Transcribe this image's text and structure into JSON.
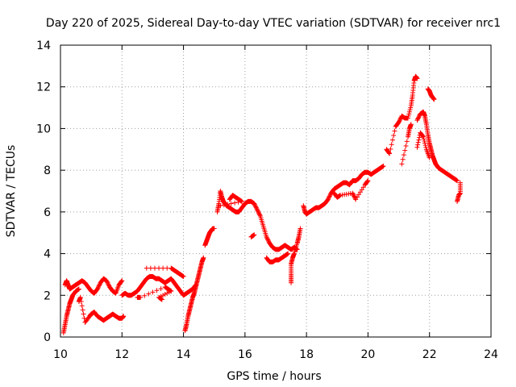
{
  "chart_data": {
    "type": "scatter",
    "title": "Day 220 of 2025, Sidereal Day-to-day VTEC variation (SDTVAR) for receiver nrc1",
    "xlabel": "GPS time / hours",
    "ylabel": "SDTVAR / TECUs",
    "xlim": [
      10,
      24
    ],
    "ylim": [
      0,
      14
    ],
    "xticks": [
      10,
      12,
      14,
      16,
      18,
      20,
      22,
      24
    ],
    "yticks": [
      0,
      2,
      4,
      6,
      8,
      10,
      12,
      14
    ],
    "grid": true,
    "marker": "+",
    "series": [
      {
        "name": "SDTVAR",
        "color": "#ff0000",
        "segments": [
          [
            [
              10.1,
              0.2
            ],
            [
              10.15,
              0.6
            ],
            [
              10.2,
              1.0
            ],
            [
              10.25,
              1.3
            ],
            [
              10.3,
              1.6
            ],
            [
              10.35,
              1.8
            ],
            [
              10.4,
              2.0
            ],
            [
              10.5,
              2.2
            ],
            [
              10.6,
              2.3
            ]
          ],
          [
            [
              10.15,
              2.5
            ],
            [
              10.2,
              2.7
            ],
            [
              10.25,
              2.5
            ],
            [
              10.3,
              2.3
            ],
            [
              10.4,
              2.4
            ],
            [
              10.5,
              2.5
            ],
            [
              10.6,
              2.6
            ],
            [
              10.7,
              2.7
            ],
            [
              10.8,
              2.6
            ],
            [
              10.9,
              2.4
            ],
            [
              11.0,
              2.2
            ],
            [
              11.1,
              2.1
            ],
            [
              11.2,
              2.3
            ],
            [
              11.3,
              2.6
            ],
            [
              11.4,
              2.8
            ],
            [
              11.5,
              2.7
            ],
            [
              11.6,
              2.4
            ],
            [
              11.7,
              2.2
            ],
            [
              11.8,
              2.1
            ],
            [
              11.9,
              2.5
            ],
            [
              12.0,
              2.7
            ]
          ],
          [
            [
              10.6,
              1.7
            ],
            [
              10.65,
              1.9
            ],
            [
              10.8,
              0.7
            ],
            [
              10.95,
              1.0
            ],
            [
              11.0,
              1.1
            ],
            [
              11.1,
              1.2
            ],
            [
              11.2,
              1.0
            ],
            [
              11.3,
              0.9
            ],
            [
              11.4,
              0.8
            ],
            [
              11.5,
              0.9
            ],
            [
              11.6,
              1.0
            ],
            [
              11.7,
              1.1
            ],
            [
              11.8,
              1.0
            ],
            [
              11.9,
              0.9
            ],
            [
              12.0,
              0.9
            ],
            [
              12.05,
              1.0
            ]
          ],
          [
            [
              12.0,
              2.0
            ],
            [
              12.1,
              2.1
            ],
            [
              12.2,
              2.0
            ],
            [
              12.3,
              2.0
            ],
            [
              12.4,
              2.1
            ],
            [
              12.5,
              2.2
            ],
            [
              12.6,
              2.4
            ],
            [
              12.7,
              2.6
            ],
            [
              12.8,
              2.8
            ],
            [
              12.9,
              2.9
            ],
            [
              13.0,
              2.9
            ],
            [
              13.1,
              2.8
            ],
            [
              13.2,
              2.8
            ],
            [
              13.3,
              2.7
            ],
            [
              13.4,
              2.6
            ],
            [
              13.5,
              2.7
            ],
            [
              13.6,
              2.8
            ],
            [
              13.7,
              2.6
            ],
            [
              13.8,
              2.4
            ],
            [
              13.9,
              2.2
            ],
            [
              14.0,
              2.0
            ],
            [
              14.1,
              2.1
            ],
            [
              14.2,
              2.2
            ],
            [
              14.3,
              2.3
            ],
            [
              14.4,
              2.5
            ]
          ],
          [
            [
              12.5,
              1.9
            ],
            [
              12.6,
              1.9
            ],
            [
              13.4,
              2.4
            ],
            [
              13.5,
              2.3
            ],
            [
              13.6,
              2.2
            ],
            [
              13.2,
              1.9
            ],
            [
              13.3,
              1.8
            ]
          ],
          [
            [
              12.8,
              3.3
            ],
            [
              13.6,
              3.3
            ],
            [
              13.7,
              3.2
            ],
            [
              13.8,
              3.1
            ],
            [
              13.9,
              3.0
            ],
            [
              14.0,
              2.9
            ]
          ],
          [
            [
              14.05,
              0.3
            ],
            [
              14.1,
              0.6
            ],
            [
              14.15,
              1.0
            ],
            [
              14.2,
              1.3
            ],
            [
              14.25,
              1.6
            ],
            [
              14.3,
              1.9
            ],
            [
              14.35,
              2.1
            ],
            [
              14.4,
              2.4
            ],
            [
              14.45,
              2.7
            ],
            [
              14.5,
              3.0
            ],
            [
              14.55,
              3.3
            ],
            [
              14.6,
              3.6
            ],
            [
              14.65,
              3.8
            ]
          ],
          [
            [
              14.7,
              4.4
            ],
            [
              14.75,
              4.6
            ],
            [
              14.8,
              4.8
            ],
            [
              14.85,
              5.0
            ],
            [
              14.9,
              5.1
            ],
            [
              14.95,
              5.2
            ],
            [
              15.0,
              5.2
            ]
          ],
          [
            [
              15.1,
              6.0
            ],
            [
              15.15,
              6.4
            ],
            [
              15.2,
              7.0
            ],
            [
              15.25,
              6.7
            ],
            [
              15.3,
              6.5
            ],
            [
              15.35,
              6.4
            ],
            [
              15.4,
              6.3
            ],
            [
              15.5,
              6.2
            ],
            [
              15.6,
              6.1
            ],
            [
              15.7,
              6.0
            ],
            [
              15.8,
              6.0
            ],
            [
              15.9,
              6.2
            ],
            [
              16.0,
              6.4
            ],
            [
              16.1,
              6.5
            ],
            [
              16.2,
              6.5
            ],
            [
              16.3,
              6.4
            ],
            [
              16.4,
              6.1
            ],
            [
              16.5,
              5.8
            ],
            [
              16.6,
              5.3
            ],
            [
              16.7,
              4.8
            ],
            [
              16.8,
              4.5
            ],
            [
              16.9,
              4.3
            ],
            [
              17.0,
              4.2
            ],
            [
              17.1,
              4.2
            ],
            [
              17.2,
              4.3
            ],
            [
              17.3,
              4.4
            ],
            [
              17.4,
              4.3
            ],
            [
              17.5,
              4.2
            ],
            [
              17.6,
              4.3
            ],
            [
              17.7,
              4.2
            ]
          ],
          [
            [
              15.5,
              6.6
            ],
            [
              15.6,
              6.8
            ],
            [
              15.7,
              6.7
            ],
            [
              15.8,
              6.6
            ],
            [
              15.9,
              6.5
            ],
            [
              15.2,
              6.3
            ]
          ],
          [
            [
              16.2,
              4.8
            ],
            [
              16.3,
              4.9
            ]
          ],
          [
            [
              16.7,
              3.8
            ],
            [
              16.8,
              3.6
            ],
            [
              16.9,
              3.6
            ],
            [
              17.0,
              3.7
            ],
            [
              17.1,
              3.7
            ],
            [
              17.2,
              3.8
            ],
            [
              17.3,
              3.9
            ],
            [
              17.4,
              4.0
            ]
          ],
          [
            [
              17.5,
              2.6
            ],
            [
              17.5,
              3.0
            ],
            [
              17.5,
              3.5
            ],
            [
              17.55,
              3.8
            ],
            [
              17.6,
              4.0
            ],
            [
              17.7,
              4.5
            ],
            [
              17.75,
              4.8
            ],
            [
              17.8,
              5.2
            ]
          ],
          [
            [
              17.9,
              6.3
            ],
            [
              17.95,
              6.0
            ],
            [
              18.0,
              5.9
            ],
            [
              18.1,
              6.0
            ],
            [
              18.2,
              6.1
            ],
            [
              18.3,
              6.2
            ],
            [
              18.4,
              6.2
            ],
            [
              18.5,
              6.3
            ],
            [
              18.6,
              6.4
            ],
            [
              18.7,
              6.6
            ],
            [
              18.8,
              6.9
            ],
            [
              18.9,
              7.1
            ],
            [
              19.0,
              7.2
            ],
            [
              19.1,
              7.3
            ],
            [
              19.2,
              7.4
            ],
            [
              19.3,
              7.4
            ],
            [
              19.4,
              7.3
            ],
            [
              19.5,
              7.5
            ],
            [
              19.6,
              7.5
            ],
            [
              19.7,
              7.6
            ],
            [
              19.8,
              7.8
            ],
            [
              19.9,
              7.9
            ],
            [
              20.0,
              7.9
            ],
            [
              20.1,
              7.8
            ],
            [
              20.2,
              7.9
            ],
            [
              20.3,
              8.0
            ],
            [
              20.4,
              8.1
            ],
            [
              20.5,
              8.2
            ]
          ],
          [
            [
              18.9,
              6.9
            ],
            [
              19.0,
              6.7
            ],
            [
              19.1,
              6.8
            ],
            [
              19.5,
              6.9
            ],
            [
              19.6,
              6.6
            ],
            [
              19.9,
              7.3
            ],
            [
              20.0,
              7.5
            ]
          ],
          [
            [
              20.6,
              9.0
            ],
            [
              20.7,
              8.8
            ],
            [
              20.9,
              10.1
            ],
            [
              21.0,
              10.3
            ],
            [
              21.1,
              10.6
            ],
            [
              21.2,
              10.5
            ],
            [
              21.3,
              10.5
            ],
            [
              21.4,
              11.1
            ],
            [
              21.45,
              11.6
            ],
            [
              21.5,
              12.3
            ],
            [
              21.55,
              12.5
            ],
            [
              21.6,
              12.4
            ]
          ],
          [
            [
              21.1,
              8.3
            ],
            [
              21.3,
              9.6
            ],
            [
              21.35,
              10.0
            ],
            [
              21.4,
              10.2
            ]
          ],
          [
            [
              21.6,
              10.4
            ],
            [
              21.7,
              10.7
            ],
            [
              21.8,
              10.8
            ],
            [
              21.85,
              10.6
            ],
            [
              21.9,
              10.2
            ],
            [
              21.95,
              9.7
            ],
            [
              22.0,
              9.3
            ],
            [
              22.05,
              9.0
            ],
            [
              22.1,
              8.7
            ],
            [
              22.15,
              8.5
            ],
            [
              22.2,
              8.3
            ],
            [
              22.25,
              8.2
            ],
            [
              22.3,
              8.1
            ],
            [
              22.4,
              8.0
            ],
            [
              22.5,
              7.9
            ],
            [
              22.6,
              7.8
            ],
            [
              22.7,
              7.7
            ],
            [
              22.8,
              7.6
            ],
            [
              22.9,
              7.5
            ]
          ],
          [
            [
              21.6,
              9.1
            ],
            [
              21.7,
              9.8
            ],
            [
              21.8,
              9.6
            ],
            [
              21.9,
              9.0
            ],
            [
              22.0,
              8.6
            ]
          ],
          [
            [
              21.95,
              11.9
            ],
            [
              22.0,
              11.8
            ],
            [
              22.05,
              11.6
            ],
            [
              22.1,
              11.5
            ],
            [
              22.15,
              11.4
            ]
          ],
          [
            [
              22.9,
              6.5
            ],
            [
              22.95,
              6.8
            ],
            [
              23.0,
              6.9
            ],
            [
              23.0,
              7.4
            ]
          ]
        ]
      }
    ]
  }
}
